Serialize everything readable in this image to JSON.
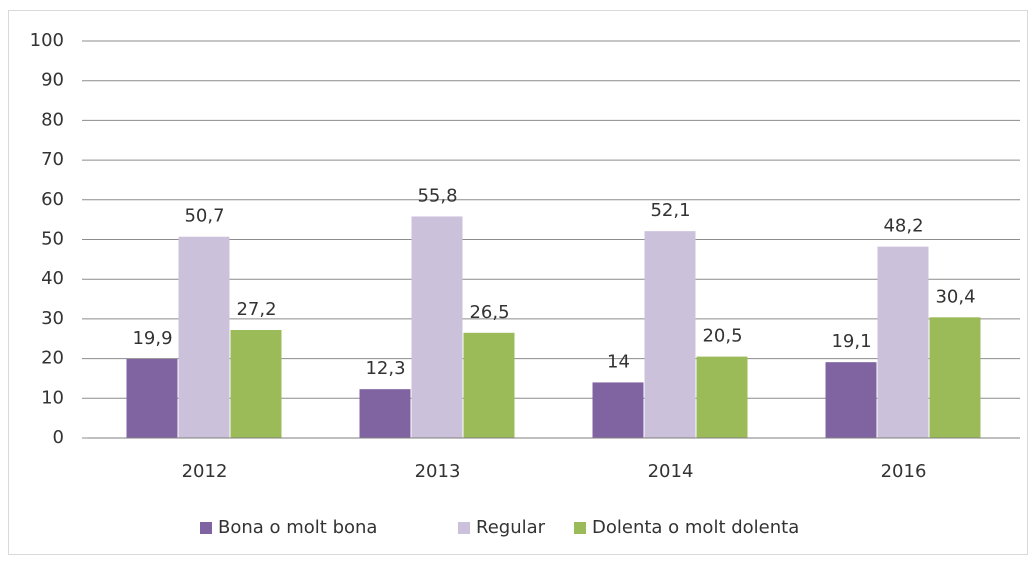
{
  "chart_data": {
    "type": "bar",
    "categories": [
      "2012",
      "2013",
      "2014",
      "2016"
    ],
    "series": [
      {
        "name": "Bona o molt bona",
        "color": "#8064a2",
        "values": [
          19.9,
          12.3,
          14,
          19.1
        ],
        "value_labels": [
          "19,9",
          "12,3",
          "14",
          "19,1"
        ]
      },
      {
        "name": "Regular",
        "color": "#ccc1da",
        "values": [
          50.7,
          55.8,
          52.1,
          48.2
        ],
        "value_labels": [
          "50,7",
          "55,8",
          "52,1",
          "48,2"
        ]
      },
      {
        "name": "Dolenta o molt dolenta",
        "color": "#9bbb59",
        "values": [
          27.2,
          26.5,
          20.5,
          30.4
        ],
        "value_labels": [
          "27,2",
          "26,5",
          "20,5",
          "30,4"
        ]
      }
    ],
    "ylim": [
      0,
      100
    ],
    "yticks": [
      0,
      10,
      20,
      30,
      40,
      50,
      60,
      70,
      80,
      90,
      100
    ],
    "grid": true,
    "legend": "bottom"
  }
}
